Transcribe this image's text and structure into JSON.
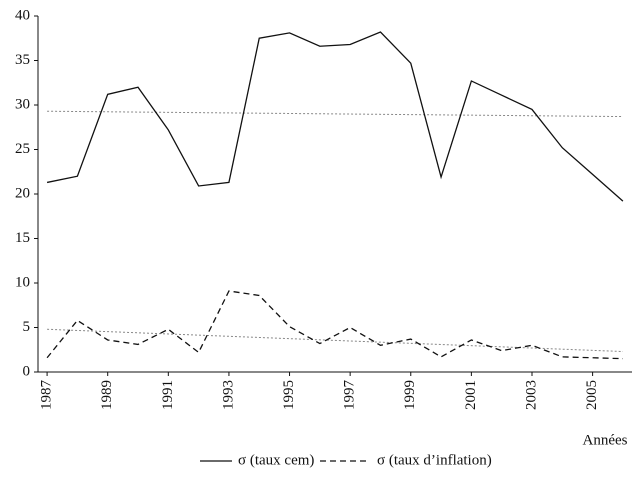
{
  "chart_data": {
    "type": "line",
    "x": [
      1987,
      1988,
      1989,
      1990,
      1991,
      1992,
      1993,
      1994,
      1995,
      1996,
      1997,
      1998,
      1999,
      2000,
      2001,
      2002,
      2003,
      2004,
      2005,
      2006
    ],
    "series": [
      {
        "name": "σ (taux cem)",
        "color": "#111111",
        "dash": "none",
        "values": [
          21.3,
          22.0,
          31.2,
          32.0,
          27.2,
          20.9,
          21.3,
          37.5,
          38.1,
          36.6,
          36.8,
          38.2,
          34.7,
          21.9,
          32.7,
          31.1,
          29.5,
          25.2,
          22.2,
          19.2
        ]
      },
      {
        "name": "σ (taux d’inflation)",
        "color": "#111111",
        "dash": "6 4",
        "values": [
          1.6,
          5.8,
          3.6,
          3.1,
          4.8,
          2.2,
          9.1,
          8.6,
          5.1,
          3.2,
          5.0,
          3.0,
          3.7,
          1.7,
          3.6,
          2.4,
          3.0,
          1.7,
          1.6,
          1.5
        ]
      }
    ],
    "trends": [
      {
        "color": "#888888",
        "values": [
          29.3,
          28.7
        ]
      },
      {
        "color": "#888888",
        "values": [
          4.8,
          2.3
        ]
      }
    ],
    "xlabel": "Années",
    "xlim": [
      1986.7,
      2006.3
    ],
    "xticks": [
      1987,
      1989,
      1991,
      1993,
      1995,
      1997,
      1999,
      2001,
      2003,
      2005
    ],
    "ylim": [
      0,
      40
    ],
    "yticks": [
      0,
      5,
      10,
      15,
      20,
      25,
      30,
      35,
      40
    ]
  }
}
